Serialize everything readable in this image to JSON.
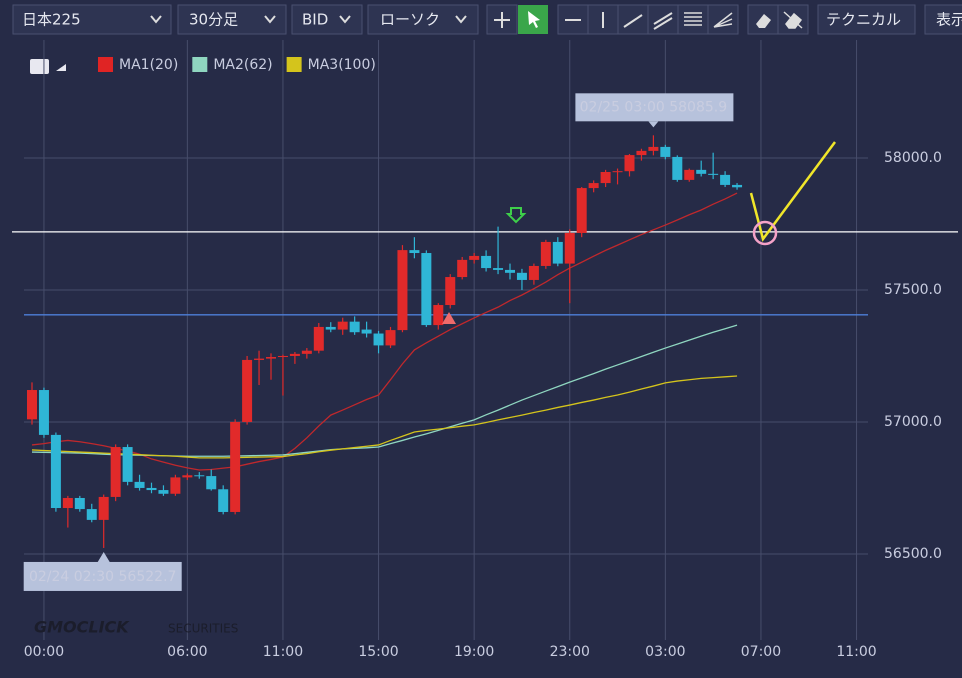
{
  "toolbar": {
    "symbol": "日本225",
    "timeframe": "30分足",
    "price_type": "BID",
    "chart_style": "ローソク",
    "technical": "テクニカル",
    "display": "表示"
  },
  "logo": {
    "brand": "GMOCLICK",
    "suffix": "SECURITIES"
  },
  "chart_data": {
    "type": "candlestick",
    "categories": [
      null,
      "00:00",
      null,
      null,
      null,
      null,
      null,
      null,
      null,
      null,
      null,
      null,
      null,
      "06:00",
      null,
      null,
      null,
      null,
      null,
      null,
      null,
      "11:00",
      null,
      null,
      null,
      null,
      null,
      null,
      null,
      "15:00",
      null,
      null,
      null,
      null,
      null,
      null,
      null,
      "19:00",
      null,
      null,
      null,
      null,
      null,
      null,
      null,
      "23:00",
      null,
      null,
      null,
      null,
      null,
      null,
      null,
      "03:00",
      null,
      null,
      null,
      null,
      null,
      null,
      null,
      "07:00",
      null,
      null,
      null,
      null,
      null,
      null,
      null,
      "11:00"
    ],
    "candles": {
      "up_color": "#e12a2a",
      "down_color": "#2fb6d6",
      "open": [
        57010,
        57121,
        56951,
        56674,
        56712,
        56670,
        56629,
        56716,
        56905,
        56773,
        56750,
        56742,
        56728,
        56790,
        56798,
        56795,
        56745,
        56659,
        57000,
        57235,
        57240,
        57246,
        57250,
        57258,
        57270,
        57360,
        57350,
        57380,
        57350,
        57335,
        57290,
        57348,
        57651,
        57640,
        57367,
        57443,
        57549,
        57614,
        57629,
        57583,
        57576,
        57565,
        57538,
        57591,
        57682,
        57600,
        57716,
        57886,
        57905,
        57947,
        57950,
        58011,
        58027,
        58042,
        58004,
        57917,
        57955,
        57940,
        57936,
        57898,
        null,
        null,
        null,
        null,
        null,
        null,
        null,
        null,
        null,
        null
      ],
      "high": [
        57150,
        57130,
        56960,
        56720,
        56720,
        56690,
        56725,
        56915,
        56915,
        56800,
        56770,
        56760,
        56800,
        56805,
        56810,
        56820,
        56760,
        57010,
        57250,
        57270,
        57260,
        57255,
        57265,
        57280,
        57375,
        57378,
        57395,
        57400,
        57380,
        57345,
        57360,
        57670,
        57700,
        57650,
        57450,
        57560,
        57625,
        57640,
        57650,
        57740,
        57600,
        57580,
        57600,
        57690,
        57700,
        57730,
        57890,
        57915,
        57955,
        57960,
        58015,
        58035,
        58085.9,
        58050,
        58010,
        57960,
        57990,
        58020,
        57950,
        57905,
        null,
        null,
        null,
        null,
        null,
        null,
        null,
        null,
        null,
        null
      ],
      "low": [
        56990,
        56940,
        56660,
        56600,
        56660,
        56620,
        56522.7,
        56700,
        56760,
        56740,
        56730,
        56720,
        56720,
        56780,
        56785,
        56740,
        56650,
        56650,
        56990,
        57140,
        57160,
        57100,
        57220,
        57240,
        57260,
        57340,
        57330,
        57330,
        57320,
        57260,
        57280,
        57340,
        57620,
        57360,
        57350,
        57430,
        57540,
        57600,
        57570,
        57560,
        57540,
        57500,
        57520,
        57580,
        57590,
        57450,
        57700,
        57870,
        57890,
        57900,
        57930,
        57990,
        58010,
        57995,
        57910,
        57910,
        57930,
        57920,
        57890,
        57880,
        null,
        null,
        null,
        null,
        null,
        null,
        null,
        null,
        null,
        null
      ],
      "close": [
        57121,
        56951,
        56674,
        56712,
        56670,
        56629,
        56716,
        56905,
        56773,
        56750,
        56742,
        56728,
        56790,
        56798,
        56795,
        56745,
        56659,
        57000,
        57235,
        57240,
        57246,
        57250,
        57258,
        57270,
        57360,
        57350,
        57380,
        57340,
        57335,
        57290,
        57348,
        57651,
        57640,
        57367,
        57443,
        57549,
        57614,
        57629,
        57583,
        57576,
        57565,
        57538,
        57591,
        57682,
        57600,
        57716,
        57886,
        57905,
        57947,
        57950,
        58011,
        58027,
        58042,
        58004,
        57917,
        57955,
        57940,
        57936,
        57898,
        57889,
        null,
        null,
        null,
        null,
        null,
        null,
        null,
        null,
        null,
        null
      ]
    },
    "series": [
      {
        "name": "MA1(20)",
        "color": "#c0282c",
        "values": [
          56913,
          56918,
          56925,
          56930,
          56925,
          56918,
          56910,
          56900,
          56890,
          56878,
          56860,
          56848,
          56836,
          56826,
          56818,
          56820,
          56825,
          56830,
          56840,
          56850,
          56858,
          56867,
          56900,
          56940,
          56985,
          57026,
          57045,
          57065,
          57085,
          57102,
          57160,
          57220,
          57273,
          57300,
          57325,
          57350,
          57372,
          57394,
          57415,
          57435,
          57460,
          57481,
          57505,
          57530,
          57558,
          57583,
          57605,
          57628,
          57650,
          57670,
          57690,
          57710,
          57728,
          57746,
          57765,
          57785,
          57803,
          57825,
          57845,
          57867,
          null,
          null,
          null,
          null,
          null,
          null,
          null,
          null,
          null,
          null
        ]
      },
      {
        "name": "MA2(62)",
        "color": "#8fd6c0",
        "values": [
          56886,
          56885,
          56884,
          56883,
          56882,
          56880,
          56878,
          56876,
          56875,
          56874,
          56873,
          56872,
          56871,
          56870,
          56870,
          56870,
          56870,
          56871,
          56872,
          56873,
          56874,
          56875,
          56880,
          56885,
          56890,
          56895,
          56898,
          56900,
          56902,
          56905,
          56918,
          56930,
          56943,
          56955,
          56968,
          56982,
          56995,
          57008,
          57027,
          57045,
          57064,
          57083,
          57100,
          57117,
          57134,
          57151,
          57167,
          57183,
          57200,
          57216,
          57232,
          57248,
          57264,
          57280,
          57295,
          57310,
          57325,
          57340,
          57353,
          57367,
          null,
          null,
          null,
          null,
          null,
          null,
          null,
          null,
          null,
          null
        ]
      },
      {
        "name": "MA3(100)",
        "color": "#d4c41c",
        "values": [
          56894,
          56892,
          56890,
          56888,
          56886,
          56884,
          56882,
          56880,
          56878,
          56876,
          56874,
          56872,
          56870,
          56867,
          56864,
          56864,
          56864,
          56865,
          56866,
          56867,
          56868,
          56869,
          56875,
          56880,
          56887,
          56893,
          56898,
          56903,
          56908,
          56913,
          56930,
          56946,
          56962,
          56968,
          56973,
          56978,
          56984,
          56989,
          56998,
          57008,
          57017,
          57026,
          57036,
          57045,
          57055,
          57064,
          57074,
          57083,
          57093,
          57102,
          57113,
          57125,
          57136,
          57148,
          57155,
          57160,
          57165,
          57168,
          57171,
          57174,
          null,
          null,
          null,
          null,
          null,
          null,
          null,
          null,
          null,
          null
        ]
      }
    ],
    "hlines": [
      {
        "value": 57720,
        "color": "#ffffff"
      },
      {
        "value": 57406,
        "color": "#4d7fd8"
      }
    ],
    "high_label": "02/25 03:00 58085.9",
    "low_label": "02/24 02:30 56522.7",
    "ylim": [
      56174,
      58447
    ],
    "yticks": [
      {
        "value": 56500,
        "label": "56500.0"
      },
      {
        "value": 57000,
        "label": "57000.0"
      },
      {
        "value": 57500,
        "label": "57500.0"
      },
      {
        "value": 58000,
        "label": "58000.0"
      }
    ],
    "grid": true
  }
}
